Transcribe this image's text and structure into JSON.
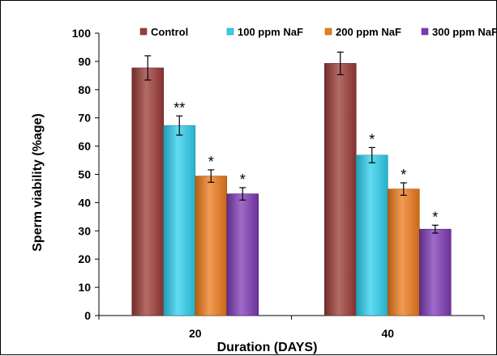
{
  "chart_data": {
    "type": "bar",
    "xlabel": "Duration (DAYS)",
    "ylabel": "Sperm viability (%age)",
    "ylim": [
      0,
      100
    ],
    "yticks": [
      0,
      10,
      20,
      30,
      40,
      50,
      60,
      70,
      80,
      90,
      100
    ],
    "categories": [
      "20",
      "40"
    ],
    "grid": false,
    "legend_position": "top",
    "series": [
      {
        "name": "Control",
        "color": "#9b3a36",
        "values": [
          87.7,
          89.3
        ],
        "errors": [
          4.3,
          4.0
        ],
        "annotations": [
          "",
          ""
        ]
      },
      {
        "name": "100 ppm NaF",
        "color": "#2ed0ee",
        "values": [
          67.3,
          56.8
        ],
        "errors": [
          3.4,
          2.7
        ],
        "annotations": [
          "**",
          "*"
        ]
      },
      {
        "name": "200 ppm NaF",
        "color": "#ee7a1a",
        "values": [
          49.4,
          44.8
        ],
        "errors": [
          2.2,
          2.2
        ],
        "annotations": [
          "*",
          "*"
        ]
      },
      {
        "name": "300 ppm NaF",
        "color": "#7f3ab5",
        "values": [
          43.1,
          30.6
        ],
        "errors": [
          2.2,
          1.4
        ],
        "annotations": [
          "*",
          "*"
        ]
      }
    ]
  }
}
